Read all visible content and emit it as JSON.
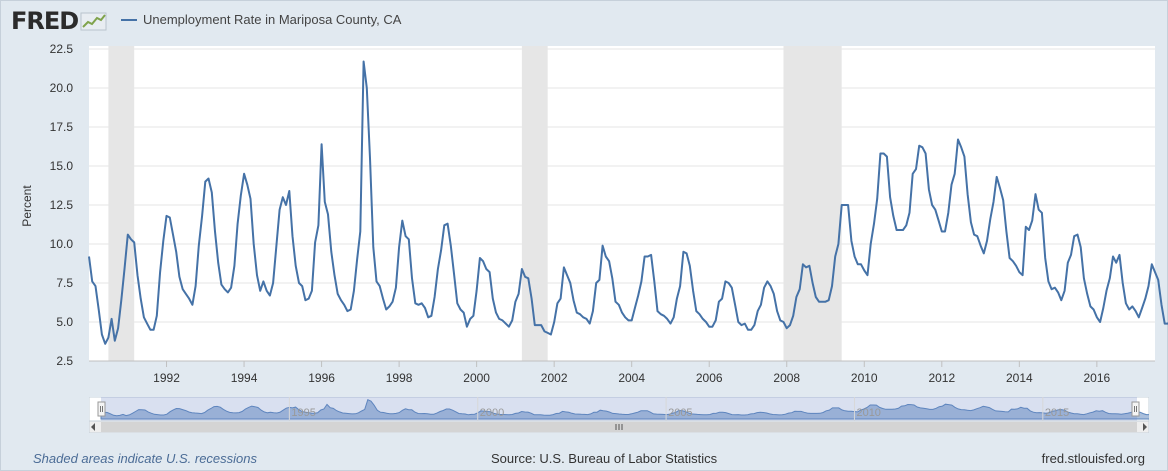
{
  "header": {
    "logo_text": "FRED",
    "logo_icon": "chart-line-icon",
    "series_name": "Unemployment Rate in Mariposa County, CA",
    "series_color": "#4572a7"
  },
  "chart_data": {
    "type": "line",
    "ylabel": "Percent",
    "ylim": [
      2.5,
      22.5
    ],
    "yticks": [
      "2.5",
      "5.0",
      "7.5",
      "10.0",
      "12.5",
      "15.0",
      "17.5",
      "20.0",
      "22.5"
    ],
    "xticks": [
      "1992",
      "1994",
      "1996",
      "1998",
      "2000",
      "2002",
      "2004",
      "2006",
      "2008",
      "2010",
      "2012",
      "2014",
      "2016"
    ],
    "x_range": [
      "1990-01",
      "2017-07"
    ],
    "grid": true,
    "recessions": [
      [
        "1990-07",
        "1991-03"
      ],
      [
        "2001-03",
        "2001-11"
      ],
      [
        "2007-12",
        "2009-06"
      ]
    ],
    "series": [
      {
        "name": "Unemployment Rate in Mariposa County, CA",
        "start": "1990-01",
        "frequency": "monthly",
        "values": [
          9.2,
          7.6,
          7.3,
          5.8,
          4.2,
          3.6,
          4.0,
          5.2,
          3.8,
          4.6,
          6.4,
          8.4,
          10.6,
          10.3,
          10.1,
          8.0,
          6.5,
          5.3,
          4.9,
          4.5,
          4.5,
          5.4,
          8.2,
          10.2,
          11.8,
          11.7,
          10.6,
          9.5,
          7.9,
          7.1,
          6.8,
          6.5,
          6.1,
          7.3,
          9.9,
          11.8,
          14.0,
          14.2,
          13.3,
          10.8,
          8.8,
          7.4,
          7.1,
          6.9,
          7.2,
          8.6,
          11.3,
          13.1,
          14.5,
          13.8,
          12.9,
          10.0,
          8.0,
          7.0,
          7.6,
          7.0,
          6.7,
          7.5,
          9.9,
          12.2,
          13.0,
          12.5,
          13.4,
          10.5,
          8.6,
          7.5,
          7.3,
          6.4,
          6.5,
          7.0,
          10.1,
          11.2,
          16.4,
          12.7,
          11.9,
          9.5,
          8.0,
          6.8,
          6.4,
          6.1,
          5.7,
          5.8,
          7.0,
          9.0,
          10.8,
          21.7,
          20.0,
          15.5,
          9.8,
          7.6,
          7.3,
          6.5,
          5.8,
          6.0,
          6.3,
          7.2,
          9.8,
          11.5,
          10.5,
          10.3,
          7.8,
          6.2,
          6.1,
          6.2,
          5.9,
          5.3,
          5.4,
          6.6,
          8.4,
          9.6,
          11.2,
          11.3,
          9.9,
          8.1,
          6.2,
          5.8,
          5.6,
          4.7,
          5.2,
          5.4,
          7.0,
          9.1,
          8.9,
          8.4,
          8.2,
          6.5,
          5.6,
          5.2,
          5.1,
          4.9,
          4.7,
          5.1,
          6.3,
          6.8,
          8.4,
          7.9,
          7.8,
          6.5,
          4.8,
          4.8,
          4.8,
          4.4,
          4.3,
          4.2,
          5.0,
          6.2,
          6.5,
          8.5,
          8.0,
          7.5,
          6.4,
          5.6,
          5.5,
          5.3,
          5.2,
          4.9,
          5.7,
          7.5,
          7.7,
          9.9,
          9.2,
          8.9,
          7.8,
          6.3,
          6.1,
          5.6,
          5.3,
          5.1,
          5.1,
          5.9,
          6.7,
          7.6,
          9.2,
          9.2,
          9.3,
          7.6,
          5.7,
          5.5,
          5.4,
          5.2,
          4.9,
          5.3,
          6.5,
          7.3,
          9.5,
          9.4,
          8.6,
          7.0,
          5.7,
          5.5,
          5.2,
          5.0,
          4.7,
          4.7,
          5.1,
          6.3,
          6.5,
          7.6,
          7.5,
          7.2,
          6.1,
          5.0,
          4.8,
          4.9,
          4.5,
          4.5,
          4.8,
          5.7,
          6.1,
          7.2,
          7.6,
          7.3,
          6.8,
          5.7,
          5.1,
          5.0,
          4.6,
          4.8,
          5.4,
          6.6,
          7.1,
          8.7,
          8.5,
          8.6,
          7.5,
          6.6,
          6.3,
          6.3,
          6.3,
          6.4,
          7.3,
          9.2,
          10.0,
          12.5,
          12.5,
          12.5,
          10.2,
          9.2,
          8.7,
          8.7,
          8.3,
          8.0,
          10.0,
          11.3,
          12.9,
          15.8,
          15.8,
          15.6,
          13.0,
          11.8,
          10.9,
          10.9,
          10.9,
          11.2,
          12.0,
          14.5,
          14.8,
          16.3,
          16.2,
          15.8,
          13.5,
          12.5,
          12.2,
          11.5,
          10.8,
          10.8,
          12.0,
          13.8,
          14.5,
          16.7,
          16.2,
          15.6,
          13.2,
          11.4,
          10.6,
          10.5,
          9.9,
          9.4,
          10.2,
          11.6,
          12.7,
          14.3,
          13.6,
          12.8,
          10.8,
          9.1,
          8.9,
          8.6,
          8.2,
          8.0,
          11.1,
          10.9,
          11.5,
          13.2,
          12.2,
          12.0,
          9.1,
          7.6,
          7.1,
          7.2,
          6.9,
          6.4,
          7.0,
          8.8,
          9.3,
          10.5,
          10.6,
          9.8,
          7.8,
          6.8,
          6.0,
          5.8,
          5.3,
          5.0,
          5.9,
          7.0,
          7.8,
          9.2,
          8.8,
          9.3,
          7.5,
          6.2,
          5.8,
          6.0,
          5.7,
          5.3,
          5.9,
          6.5,
          7.3,
          8.7,
          8.2,
          7.7,
          6.1,
          4.9,
          4.9,
          5.1,
          5.0
        ]
      }
    ],
    "navigator_ticks": [
      "1995",
      "2000",
      "2005",
      "2010",
      "2015"
    ]
  },
  "footer": {
    "recession_note": "Shaded areas indicate U.S. recessions",
    "source": "Source: U.S. Bureau of Labor Statistics",
    "site": "fred.stlouisfed.org"
  }
}
